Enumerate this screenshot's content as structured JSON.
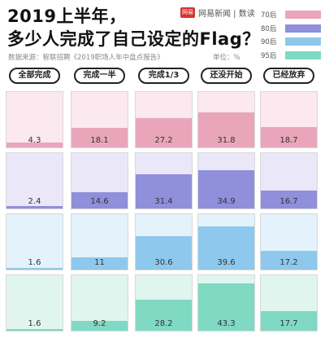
{
  "title_line1": "2019上半年，",
  "title_line2": "多少人完成了自己设定的Flag？",
  "source": "数据来源：智联招聘《2019职场人年中盘点报告》",
  "unit": "单位：%",
  "brand": {
    "logo_text": "网易",
    "name": "网易新闻 | 数读"
  },
  "colors": {
    "70后": {
      "fill": "#e9a6bb",
      "bg": "#fbe9ef"
    },
    "80后": {
      "fill": "#8f8fdc",
      "bg": "#eae7f8"
    },
    "90后": {
      "fill": "#8ec8ec",
      "bg": "#e3f2fb"
    },
    "95后": {
      "fill": "#7fd9c3",
      "bg": "#e1f5ef"
    }
  },
  "chart_data": {
    "type": "table",
    "title": "2019上半年，多少人完成了自己设定的Flag？",
    "categories": [
      "全部完成",
      "完成一半",
      "完成1/3",
      "还没开始",
      "已经放弃"
    ],
    "series": [
      {
        "name": "70后",
        "values": [
          4.3,
          18.1,
          27.2,
          31.8,
          18.7
        ]
      },
      {
        "name": "80后",
        "values": [
          2.4,
          14.6,
          31.4,
          34.9,
          16.7
        ]
      },
      {
        "name": "90后",
        "values": [
          1.6,
          11,
          30.6,
          39.6,
          17.2
        ]
      },
      {
        "name": "95后",
        "values": [
          1.6,
          9.2,
          28.2,
          43.3,
          17.7
        ]
      }
    ],
    "ylim": [
      0,
      50
    ],
    "unit": "%"
  },
  "display": {
    "values": [
      [
        "4.3",
        "18.1",
        "27.2",
        "31.8",
        "18.7"
      ],
      [
        "2.4",
        "14.6",
        "31.4",
        "34.9",
        "16.7"
      ],
      [
        "1.6",
        "11",
        "30.6",
        "39.6",
        "17.2"
      ],
      [
        "1.6",
        "9.2",
        "28.2",
        "43.3",
        "17.7"
      ]
    ]
  }
}
